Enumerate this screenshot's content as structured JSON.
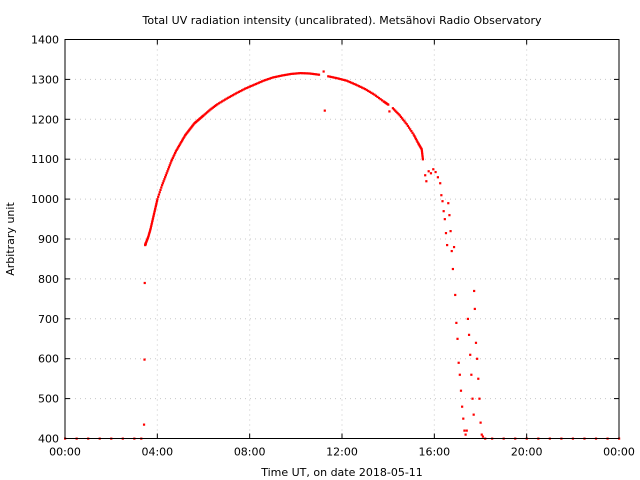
{
  "chart_data": {
    "type": "scatter",
    "title": "Total UV radiation intensity (uncalibrated). Metsähovi Radio Observatory",
    "xlabel": "Time UT, on date 2018-05-11",
    "ylabel": "Arbitrary unit",
    "xlim": [
      0,
      24
    ],
    "ylim": [
      400,
      1400
    ],
    "x_ticks": [
      0,
      4,
      8,
      12,
      16,
      20,
      24
    ],
    "x_tick_labels": [
      "00:00",
      "04:00",
      "08:00",
      "12:00",
      "16:00",
      "20:00",
      "00:00"
    ],
    "y_ticks": [
      400,
      500,
      600,
      700,
      800,
      900,
      1000,
      1100,
      1200,
      1300,
      1400
    ],
    "grid": true,
    "marker_color": "#ff0000",
    "series": [
      {
        "x_unit": "hours UT",
        "points": [
          [
            0.0,
            400
          ],
          [
            0.5,
            400
          ],
          [
            1.0,
            400
          ],
          [
            1.5,
            400
          ],
          [
            2.0,
            400
          ],
          [
            2.5,
            400
          ],
          [
            3.0,
            400
          ],
          [
            3.3,
            400
          ],
          [
            3.42,
            435
          ],
          [
            3.44,
            598
          ],
          [
            3.45,
            790
          ],
          [
            3.47,
            885
          ],
          [
            3.5,
            890
          ],
          [
            3.6,
            905
          ],
          [
            3.7,
            925
          ],
          [
            3.8,
            950
          ],
          [
            3.9,
            975
          ],
          [
            4.0,
            1000
          ],
          [
            4.2,
            1035
          ],
          [
            4.4,
            1065
          ],
          [
            4.6,
            1095
          ],
          [
            4.8,
            1120
          ],
          [
            5.0,
            1140
          ],
          [
            5.2,
            1160
          ],
          [
            5.4,
            1175
          ],
          [
            5.6,
            1190
          ],
          [
            5.8,
            1200
          ],
          [
            6.0,
            1210
          ],
          [
            6.3,
            1225
          ],
          [
            6.6,
            1238
          ],
          [
            7.0,
            1252
          ],
          [
            7.4,
            1265
          ],
          [
            7.8,
            1277
          ],
          [
            8.2,
            1287
          ],
          [
            8.6,
            1297
          ],
          [
            9.0,
            1305
          ],
          [
            9.4,
            1310
          ],
          [
            9.8,
            1314
          ],
          [
            10.2,
            1316
          ],
          [
            10.6,
            1315
          ],
          [
            11.0,
            1312
          ],
          [
            11.2,
            1320
          ],
          [
            11.25,
            1222
          ],
          [
            11.4,
            1308
          ],
          [
            11.8,
            1303
          ],
          [
            12.2,
            1297
          ],
          [
            12.6,
            1287
          ],
          [
            13.0,
            1276
          ],
          [
            13.4,
            1262
          ],
          [
            13.8,
            1245
          ],
          [
            14.0,
            1237
          ],
          [
            14.05,
            1220
          ],
          [
            14.2,
            1228
          ],
          [
            14.5,
            1210
          ],
          [
            14.8,
            1188
          ],
          [
            15.1,
            1162
          ],
          [
            15.3,
            1140
          ],
          [
            15.45,
            1125
          ],
          [
            15.5,
            1100
          ],
          [
            15.6,
            1060
          ],
          [
            15.65,
            1045
          ],
          [
            15.75,
            1070
          ],
          [
            15.85,
            1065
          ],
          [
            15.95,
            1075
          ],
          [
            16.05,
            1068
          ],
          [
            16.15,
            1055
          ],
          [
            16.25,
            1040
          ],
          [
            16.3,
            1010
          ],
          [
            16.35,
            995
          ],
          [
            16.4,
            970
          ],
          [
            16.45,
            950
          ],
          [
            16.5,
            915
          ],
          [
            16.55,
            885
          ],
          [
            16.6,
            990
          ],
          [
            16.65,
            960
          ],
          [
            16.7,
            920
          ],
          [
            16.75,
            870
          ],
          [
            16.8,
            825
          ],
          [
            16.85,
            880
          ],
          [
            16.9,
            760
          ],
          [
            16.95,
            690
          ],
          [
            17.0,
            650
          ],
          [
            17.05,
            590
          ],
          [
            17.1,
            560
          ],
          [
            17.15,
            520
          ],
          [
            17.2,
            480
          ],
          [
            17.25,
            450
          ],
          [
            17.3,
            420
          ],
          [
            17.35,
            410
          ],
          [
            17.4,
            420
          ],
          [
            17.45,
            700
          ],
          [
            17.5,
            660
          ],
          [
            17.55,
            610
          ],
          [
            17.6,
            560
          ],
          [
            17.65,
            500
          ],
          [
            17.7,
            460
          ],
          [
            17.72,
            770
          ],
          [
            17.75,
            725
          ],
          [
            17.8,
            640
          ],
          [
            17.85,
            600
          ],
          [
            17.9,
            550
          ],
          [
            17.95,
            500
          ],
          [
            18.0,
            440
          ],
          [
            18.05,
            410
          ],
          [
            18.1,
            405
          ],
          [
            18.2,
            400
          ],
          [
            18.5,
            400
          ],
          [
            19.0,
            400
          ],
          [
            19.5,
            400
          ],
          [
            20.0,
            400
          ],
          [
            20.5,
            400
          ],
          [
            21.0,
            400
          ],
          [
            21.5,
            400
          ],
          [
            22.0,
            400
          ],
          [
            22.5,
            400
          ],
          [
            23.0,
            400
          ],
          [
            23.5,
            400
          ],
          [
            24.0,
            400
          ]
        ]
      }
    ]
  }
}
